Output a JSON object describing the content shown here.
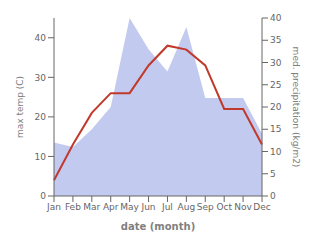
{
  "chart_data": {
    "type": "line",
    "xlabel": "date (month)",
    "ylabel": "max temp (C)",
    "y2label": "med. precipitation (kg/m2)",
    "categories": [
      "Jan",
      "Feb",
      "Mar",
      "Apr",
      "May",
      "Jun",
      "Jul",
      "Aug",
      "Sep",
      "Oct",
      "Nov",
      "Dec"
    ],
    "series": [
      {
        "type": "area",
        "axis": "y2",
        "color": "#aab4e8",
        "values": [
          12,
          11,
          15,
          20,
          40,
          33,
          28,
          38,
          22,
          22,
          22,
          14
        ]
      },
      {
        "type": "line",
        "color": "#c0392b",
        "values": [
          4,
          13,
          21,
          26,
          26,
          33,
          38,
          37,
          33,
          22,
          22,
          13
        ]
      }
    ],
    "ylim": [
      0,
      45
    ],
    "yticks": [
      0,
      10,
      20,
      30,
      40
    ],
    "y2lim": [
      0,
      40
    ],
    "y2ticks": [
      0,
      5,
      10,
      15,
      20,
      25,
      30,
      35,
      40
    ],
    "grid": false
  }
}
